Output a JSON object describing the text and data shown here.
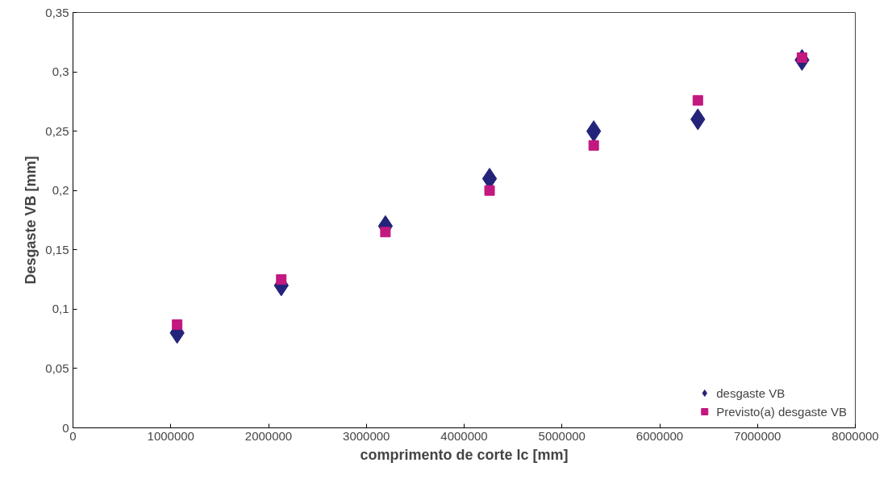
{
  "chart_data": {
    "type": "scatter",
    "xlabel": "comprimento de corte lc [mm]",
    "ylabel": "Desgaste VB [mm]",
    "x": [
      1065000,
      2130000,
      3195000,
      4260000,
      5325000,
      6390000,
      7455000
    ],
    "series": [
      {
        "name": "desgaste VB",
        "color": "#23237a",
        "marker": "diamond",
        "values": [
          0.08,
          0.12,
          0.17,
          0.21,
          0.25,
          0.26,
          0.31
        ]
      },
      {
        "name": "Previsto(a) desgaste VB",
        "color": "#c2187f",
        "marker": "square",
        "values": [
          0.087,
          0.125,
          0.165,
          0.2,
          0.238,
          0.276,
          0.312
        ]
      }
    ],
    "xlim": [
      0,
      8000000
    ],
    "xticks": [
      0,
      1000000,
      2000000,
      3000000,
      4000000,
      5000000,
      6000000,
      7000000,
      8000000
    ],
    "ylim": [
      0,
      0.35
    ],
    "yticks": [
      {
        "value": 0,
        "label": "0"
      },
      {
        "value": 0.05,
        "label": "0,05"
      },
      {
        "value": 0.1,
        "label": "0,1"
      },
      {
        "value": 0.15,
        "label": "0,15"
      },
      {
        "value": 0.2,
        "label": "0,2"
      },
      {
        "value": 0.25,
        "label": "0,25"
      },
      {
        "value": 0.3,
        "label": "0,3"
      },
      {
        "value": 0.35,
        "label": "0,35"
      }
    ],
    "grid": false,
    "legend": "bottom right"
  }
}
